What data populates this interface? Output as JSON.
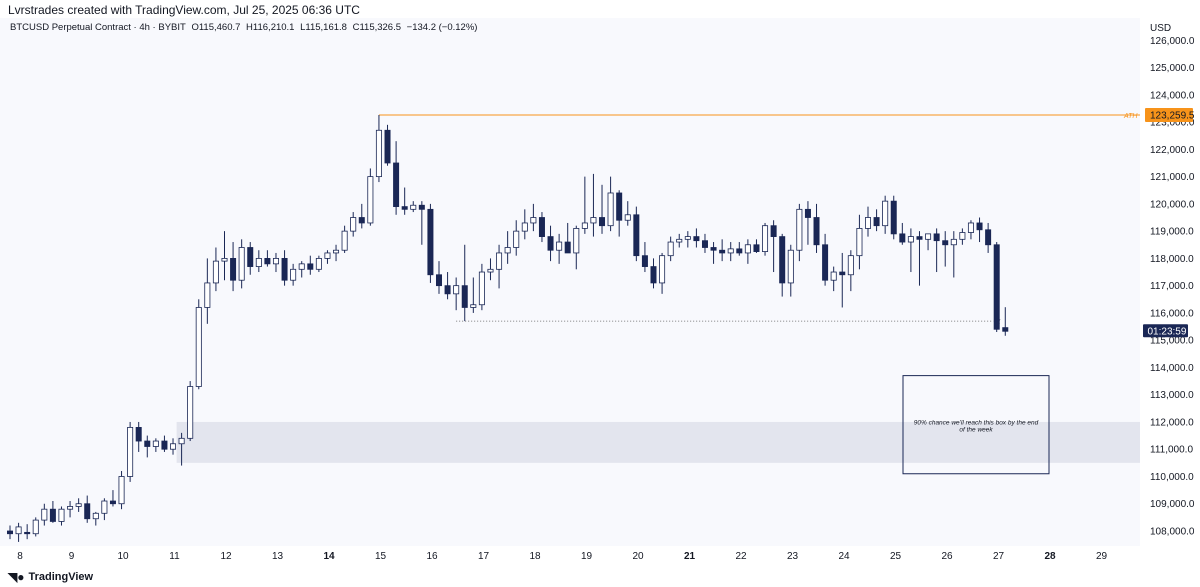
{
  "header": {
    "caption": "Lvrstrades created with TradingView.com, Jul 25, 2025 06:36 UTC"
  },
  "symbol": {
    "name": "BTCUSD Perpetual Contract · 4h · BYBIT",
    "open": "O115,460.7",
    "high": "H116,210.1",
    "low": "L115,161.8",
    "close": "C115,326.5",
    "change": "−134.2 (−0.12%)"
  },
  "price_axis": {
    "currency": "USD"
  },
  "labels": {
    "ath_tag": "ATH",
    "ath_price": "123,259.5",
    "countdown": "01:23:59",
    "target_marker": "x",
    "box_note_line1": "90% chance we'll reach this box by the end",
    "box_note_line2": "of the week"
  },
  "footer": {
    "brand": "TradingView",
    "logo_icon": "tradingview-logo-icon"
  },
  "colors": {
    "bear": "#1a2755",
    "bull_fill": "#ffffff",
    "bull_border": "#1a2755",
    "ath_line": "#f7931a",
    "zone": "#e3e5ee",
    "box_border": "#1a2755",
    "countdown_bg": "#1a2755"
  },
  "chart_data": {
    "type": "candlestick",
    "timeframe": "4h",
    "ylim": [
      107500,
      126000
    ],
    "yticks": [
      108000,
      109000,
      110000,
      111000,
      112000,
      113000,
      114000,
      115000,
      116000,
      117000,
      118000,
      119000,
      120000,
      121000,
      122000,
      123000,
      124000,
      125000,
      126000
    ],
    "ytick_labels": [
      "108,000.0",
      "109,000.0",
      "110,000.0",
      "111,000.0",
      "112,000.0",
      "113,000.0",
      "114,000.0",
      "115,000.0",
      "116,000.0",
      "117,000.0",
      "118,000.0",
      "119,000.0",
      "120,000.0",
      "121,000.0",
      "122,000.0",
      "123,000.0",
      "124,000.0",
      "125,000.0",
      "126,000.0"
    ],
    "xticks": [
      {
        "label": "8",
        "day": 8,
        "bold": false
      },
      {
        "label": "9",
        "day": 9,
        "bold": false
      },
      {
        "label": "10",
        "day": 10,
        "bold": false
      },
      {
        "label": "11",
        "day": 11,
        "bold": false
      },
      {
        "label": "12",
        "day": 12,
        "bold": false
      },
      {
        "label": "13",
        "day": 13,
        "bold": false
      },
      {
        "label": "14",
        "day": 14,
        "bold": true
      },
      {
        "label": "15",
        "day": 15,
        "bold": false
      },
      {
        "label": "16",
        "day": 16,
        "bold": false
      },
      {
        "label": "17",
        "day": 17,
        "bold": false
      },
      {
        "label": "18",
        "day": 18,
        "bold": false
      },
      {
        "label": "19",
        "day": 19,
        "bold": false
      },
      {
        "label": "20",
        "day": 20,
        "bold": false
      },
      {
        "label": "21",
        "day": 21,
        "bold": true
      },
      {
        "label": "22",
        "day": 22,
        "bold": false
      },
      {
        "label": "23",
        "day": 23,
        "bold": false
      },
      {
        "label": "24",
        "day": 24,
        "bold": false
      },
      {
        "label": "25",
        "day": 25,
        "bold": false
      },
      {
        "label": "26",
        "day": 26,
        "bold": false
      },
      {
        "label": "27",
        "day": 27,
        "bold": false
      },
      {
        "label": "28",
        "day": 28,
        "bold": true
      },
      {
        "label": "29",
        "day": 29,
        "bold": false
      }
    ],
    "candles": [
      {
        "o": 108000,
        "h": 108200,
        "l": 107700,
        "c": 107900
      },
      {
        "o": 107900,
        "h": 108300,
        "l": 107600,
        "c": 108150
      },
      {
        "o": 107950,
        "h": 108250,
        "l": 107700,
        "c": 107900
      },
      {
        "o": 107900,
        "h": 108500,
        "l": 107800,
        "c": 108400
      },
      {
        "o": 108400,
        "h": 109000,
        "l": 108200,
        "c": 108800
      },
      {
        "o": 108800,
        "h": 109100,
        "l": 108300,
        "c": 108350
      },
      {
        "o": 108350,
        "h": 108900,
        "l": 108200,
        "c": 108800
      },
      {
        "o": 108800,
        "h": 109100,
        "l": 108500,
        "c": 108900
      },
      {
        "o": 108900,
        "h": 109200,
        "l": 108700,
        "c": 109000
      },
      {
        "o": 109000,
        "h": 109300,
        "l": 108300,
        "c": 108450
      },
      {
        "o": 108450,
        "h": 108700,
        "l": 108200,
        "c": 108650
      },
      {
        "o": 108650,
        "h": 109200,
        "l": 108400,
        "c": 109100
      },
      {
        "o": 109100,
        "h": 109500,
        "l": 108900,
        "c": 109000
      },
      {
        "o": 109000,
        "h": 110200,
        "l": 108800,
        "c": 110000
      },
      {
        "o": 110000,
        "h": 112000,
        "l": 109800,
        "c": 111800
      },
      {
        "o": 111800,
        "h": 112000,
        "l": 110900,
        "c": 111300
      },
      {
        "o": 111300,
        "h": 111500,
        "l": 110700,
        "c": 111100
      },
      {
        "o": 111100,
        "h": 111400,
        "l": 110900,
        "c": 111300
      },
      {
        "o": 111300,
        "h": 111500,
        "l": 110900,
        "c": 111000
      },
      {
        "o": 111000,
        "h": 111400,
        "l": 110800,
        "c": 111200
      },
      {
        "o": 111200,
        "h": 111600,
        "l": 110400,
        "c": 111400
      },
      {
        "o": 111400,
        "h": 113500,
        "l": 111300,
        "c": 113300
      },
      {
        "o": 113300,
        "h": 116500,
        "l": 113200,
        "c": 116200
      },
      {
        "o": 116200,
        "h": 118000,
        "l": 115600,
        "c": 117100
      },
      {
        "o": 117100,
        "h": 118400,
        "l": 116800,
        "c": 117900
      },
      {
        "o": 117900,
        "h": 119000,
        "l": 117200,
        "c": 118000
      },
      {
        "o": 118000,
        "h": 118600,
        "l": 116800,
        "c": 117200
      },
      {
        "o": 117200,
        "h": 118700,
        "l": 116900,
        "c": 118400
      },
      {
        "o": 118400,
        "h": 118600,
        "l": 117400,
        "c": 117700
      },
      {
        "o": 117700,
        "h": 118300,
        "l": 117500,
        "c": 118000
      },
      {
        "o": 118000,
        "h": 118300,
        "l": 117700,
        "c": 117800
      },
      {
        "o": 117800,
        "h": 118200,
        "l": 117500,
        "c": 118000
      },
      {
        "o": 118000,
        "h": 118300,
        "l": 117000,
        "c": 117200
      },
      {
        "o": 117200,
        "h": 117800,
        "l": 117000,
        "c": 117600
      },
      {
        "o": 117600,
        "h": 117900,
        "l": 117300,
        "c": 117800
      },
      {
        "o": 117800,
        "h": 118100,
        "l": 117400,
        "c": 117600
      },
      {
        "o": 117600,
        "h": 118100,
        "l": 117500,
        "c": 118000
      },
      {
        "o": 118000,
        "h": 118300,
        "l": 117800,
        "c": 118200
      },
      {
        "o": 118200,
        "h": 118500,
        "l": 117900,
        "c": 118300
      },
      {
        "o": 118300,
        "h": 119200,
        "l": 118200,
        "c": 119000
      },
      {
        "o": 119000,
        "h": 119700,
        "l": 118800,
        "c": 119500
      },
      {
        "o": 119500,
        "h": 120000,
        "l": 119100,
        "c": 119300
      },
      {
        "o": 119300,
        "h": 121300,
        "l": 119200,
        "c": 121000
      },
      {
        "o": 121000,
        "h": 123260,
        "l": 120800,
        "c": 122700
      },
      {
        "o": 122700,
        "h": 122900,
        "l": 121400,
        "c": 121500
      },
      {
        "o": 121500,
        "h": 122300,
        "l": 119600,
        "c": 119900
      },
      {
        "o": 119900,
        "h": 120600,
        "l": 119600,
        "c": 119800
      },
      {
        "o": 119800,
        "h": 120100,
        "l": 119700,
        "c": 119950
      },
      {
        "o": 119950,
        "h": 120100,
        "l": 118500,
        "c": 119800
      },
      {
        "o": 119800,
        "h": 120000,
        "l": 117100,
        "c": 117400
      },
      {
        "o": 117400,
        "h": 117900,
        "l": 116700,
        "c": 117000
      },
      {
        "o": 117000,
        "h": 117500,
        "l": 116500,
        "c": 116700
      },
      {
        "o": 116700,
        "h": 117300,
        "l": 116100,
        "c": 117000
      },
      {
        "o": 117000,
        "h": 118500,
        "l": 115700,
        "c": 116200
      },
      {
        "o": 116200,
        "h": 117300,
        "l": 116000,
        "c": 116300
      },
      {
        "o": 116300,
        "h": 117800,
        "l": 116100,
        "c": 117500
      },
      {
        "o": 117500,
        "h": 118000,
        "l": 117200,
        "c": 117600
      },
      {
        "o": 117600,
        "h": 118500,
        "l": 116900,
        "c": 118200
      },
      {
        "o": 118200,
        "h": 119000,
        "l": 117800,
        "c": 118400
      },
      {
        "o": 118400,
        "h": 119400,
        "l": 118100,
        "c": 119000
      },
      {
        "o": 119000,
        "h": 119800,
        "l": 118700,
        "c": 119300
      },
      {
        "o": 119300,
        "h": 120000,
        "l": 119000,
        "c": 119500
      },
      {
        "o": 119500,
        "h": 119700,
        "l": 118600,
        "c": 118800
      },
      {
        "o": 118800,
        "h": 119200,
        "l": 117900,
        "c": 118300
      },
      {
        "o": 118300,
        "h": 118900,
        "l": 117800,
        "c": 118600
      },
      {
        "o": 118600,
        "h": 119300,
        "l": 118300,
        "c": 118200
      },
      {
        "o": 118200,
        "h": 119200,
        "l": 117600,
        "c": 119100
      },
      {
        "o": 119100,
        "h": 121000,
        "l": 118900,
        "c": 119300
      },
      {
        "o": 119300,
        "h": 121100,
        "l": 118800,
        "c": 119500
      },
      {
        "o": 119500,
        "h": 120700,
        "l": 118900,
        "c": 119200
      },
      {
        "o": 119200,
        "h": 121000,
        "l": 119000,
        "c": 120400
      },
      {
        "o": 120400,
        "h": 120500,
        "l": 118800,
        "c": 119400
      },
      {
        "o": 119400,
        "h": 120100,
        "l": 119200,
        "c": 119600
      },
      {
        "o": 119600,
        "h": 119900,
        "l": 117900,
        "c": 118100
      },
      {
        "o": 118100,
        "h": 118600,
        "l": 117500,
        "c": 117700
      },
      {
        "o": 117700,
        "h": 118000,
        "l": 116900,
        "c": 117100
      },
      {
        "o": 117100,
        "h": 118200,
        "l": 116700,
        "c": 118100
      },
      {
        "o": 118100,
        "h": 118800,
        "l": 117900,
        "c": 118600
      },
      {
        "o": 118600,
        "h": 118900,
        "l": 118400,
        "c": 118700
      },
      {
        "o": 118700,
        "h": 119000,
        "l": 118400,
        "c": 118800
      },
      {
        "o": 118800,
        "h": 119100,
        "l": 118400,
        "c": 118650
      },
      {
        "o": 118650,
        "h": 118900,
        "l": 118200,
        "c": 118400
      },
      {
        "o": 118400,
        "h": 118600,
        "l": 117800,
        "c": 118300
      },
      {
        "o": 118300,
        "h": 118700,
        "l": 117900,
        "c": 118200
      },
      {
        "o": 118200,
        "h": 118600,
        "l": 117900,
        "c": 118350
      },
      {
        "o": 118350,
        "h": 118600,
        "l": 118100,
        "c": 118200
      },
      {
        "o": 118200,
        "h": 118700,
        "l": 117800,
        "c": 118500
      },
      {
        "o": 118500,
        "h": 118700,
        "l": 118200,
        "c": 118250
      },
      {
        "o": 118250,
        "h": 119300,
        "l": 118100,
        "c": 119200
      },
      {
        "o": 119200,
        "h": 119400,
        "l": 117500,
        "c": 118800
      },
      {
        "o": 118800,
        "h": 118900,
        "l": 116600,
        "c": 117100
      },
      {
        "o": 117100,
        "h": 118500,
        "l": 116600,
        "c": 118300
      },
      {
        "o": 118300,
        "h": 120000,
        "l": 117900,
        "c": 119800
      },
      {
        "o": 119800,
        "h": 120100,
        "l": 118500,
        "c": 119500
      },
      {
        "o": 119500,
        "h": 120000,
        "l": 118200,
        "c": 118500
      },
      {
        "o": 118500,
        "h": 118900,
        "l": 117000,
        "c": 117200
      },
      {
        "o": 117200,
        "h": 117700,
        "l": 116800,
        "c": 117500
      },
      {
        "o": 117500,
        "h": 118200,
        "l": 116200,
        "c": 117400
      },
      {
        "o": 117400,
        "h": 118300,
        "l": 116800,
        "c": 118100
      },
      {
        "o": 118100,
        "h": 119600,
        "l": 117600,
        "c": 119100
      },
      {
        "o": 119100,
        "h": 119900,
        "l": 118800,
        "c": 119500
      },
      {
        "o": 119500,
        "h": 119800,
        "l": 119000,
        "c": 119200
      },
      {
        "o": 119200,
        "h": 120300,
        "l": 118900,
        "c": 120100
      },
      {
        "o": 120100,
        "h": 120300,
        "l": 118700,
        "c": 118900
      },
      {
        "o": 118900,
        "h": 119300,
        "l": 118500,
        "c": 118600
      },
      {
        "o": 118600,
        "h": 119100,
        "l": 117500,
        "c": 118800
      },
      {
        "o": 118800,
        "h": 119000,
        "l": 117000,
        "c": 118700
      },
      {
        "o": 118700,
        "h": 118900,
        "l": 118300,
        "c": 118900
      },
      {
        "o": 118900,
        "h": 119100,
        "l": 117500,
        "c": 118650
      },
      {
        "o": 118650,
        "h": 119000,
        "l": 117700,
        "c": 118500
      },
      {
        "o": 118500,
        "h": 119000,
        "l": 117300,
        "c": 118700
      },
      {
        "o": 118700,
        "h": 119100,
        "l": 118500,
        "c": 118950
      },
      {
        "o": 118950,
        "h": 119400,
        "l": 118700,
        "c": 119300
      },
      {
        "o": 119300,
        "h": 119500,
        "l": 118600,
        "c": 119050
      },
      {
        "o": 119050,
        "h": 119300,
        "l": 118200,
        "c": 118500
      },
      {
        "o": 118500,
        "h": 118600,
        "l": 115300,
        "c": 115400
      },
      {
        "o": 115460.7,
        "h": 116210.1,
        "l": 115161.8,
        "c": 115326.5
      }
    ],
    "ath_level": 123259.5,
    "ath_start_candle": 43,
    "support_level": 115700,
    "support_start_candle": 52,
    "support_end_candle": 116,
    "zone": {
      "low": 110500,
      "high": 112000,
      "start_candle": 20
    },
    "target_box": {
      "low": 110100,
      "high": 113700
    },
    "last_price": 115326.5
  }
}
